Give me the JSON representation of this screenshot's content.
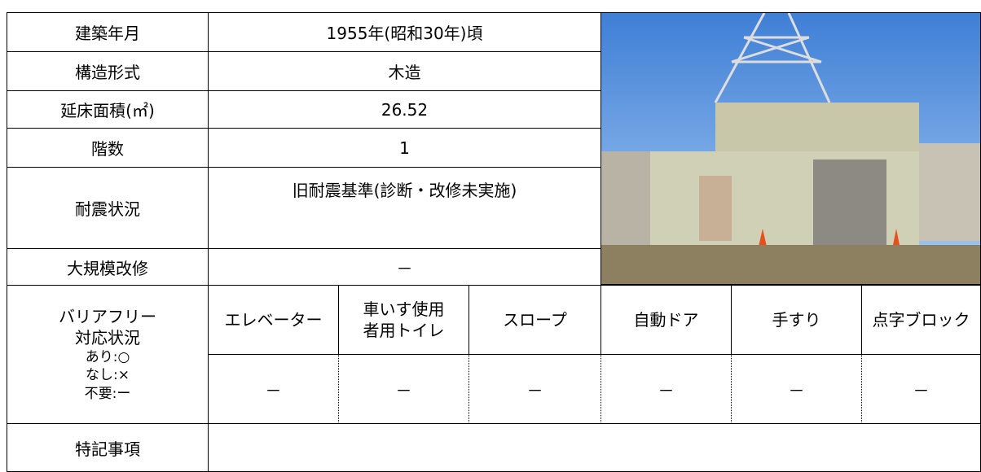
{
  "table": {
    "rows": [
      {
        "label": "建築年月",
        "value": "1955年(昭和30年)頃"
      },
      {
        "label": "構造形式",
        "value": "木造"
      },
      {
        "label": "延床面積(㎡)",
        "value": "26.52"
      },
      {
        "label": "階数",
        "value": "1"
      },
      {
        "label": "耐震状況",
        "value": "旧耐震基準(診断・改修未実施)"
      },
      {
        "label": "大規模改修",
        "value": "－"
      }
    ],
    "barrier_free": {
      "label": [
        "バリアフリー",
        "対応状況"
      ],
      "legend": [
        "あり:○",
        "なし:×",
        "不要:ー"
      ],
      "columns": [
        "エレベーター",
        "車いす使用\n者用トイレ",
        "スロープ",
        "自動ドア",
        "手すり",
        "点字ブロック"
      ],
      "values": [
        "－",
        "－",
        "－",
        "－",
        "－",
        "－"
      ]
    },
    "notes": {
      "label": "特記事項"
    }
  }
}
